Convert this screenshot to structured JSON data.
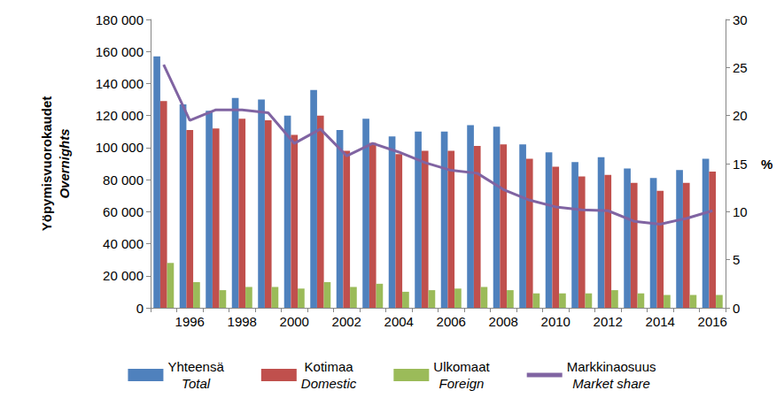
{
  "chart_data": {
    "type": "bar",
    "categories": [
      null,
      "1996",
      null,
      "1998",
      null,
      "2000",
      null,
      "2002",
      null,
      "2004",
      null,
      "2006",
      null,
      "2008",
      null,
      "2010",
      null,
      "2012",
      null,
      "2014",
      null,
      "2016"
    ],
    "ylabel": "Yöpymisvuorokaudet\nOvernights",
    "y2label": "%",
    "series": [
      {
        "name": "Yhteensä\nTotal",
        "color": "#4f81bd",
        "type": "bar",
        "values": [
          157000,
          127000,
          123000,
          131000,
          130000,
          120000,
          136000,
          111000,
          118000,
          107000,
          110000,
          110000,
          114000,
          113000,
          102000,
          97000,
          91000,
          94000,
          87000,
          81000,
          86000,
          93000
        ]
      },
      {
        "name": "Kotimaa\nDomestic",
        "color": "#c0504d",
        "type": "bar",
        "values": [
          129000,
          111000,
          112000,
          118000,
          117000,
          108000,
          120000,
          98000,
          103000,
          96000,
          98000,
          98000,
          101000,
          102000,
          93000,
          88000,
          82000,
          83000,
          78000,
          73000,
          78000,
          85000
        ]
      },
      {
        "name": "Ulkomaat\nForeign",
        "color": "#9bbb59",
        "type": "bar",
        "values": [
          28000,
          16000,
          11000,
          13000,
          13000,
          12000,
          16000,
          13000,
          15000,
          10000,
          11000,
          12000,
          13000,
          11000,
          9000,
          9000,
          9000,
          11000,
          9000,
          8000,
          8000,
          8000
        ]
      },
      {
        "name": "Markkinaosuus\nMarket share",
        "color": "#8064a2",
        "type": "line",
        "axis": "y2",
        "values": [
          25.3,
          19.5,
          20.6,
          20.6,
          20.3,
          17.1,
          18.6,
          15.8,
          17.1,
          16.2,
          15.1,
          14.3,
          14.0,
          12.3,
          11.2,
          10.5,
          10.2,
          10.1,
          9.0,
          8.7,
          9.3,
          10.1
        ]
      }
    ],
    "ylim": [
      0,
      180000
    ],
    "yticks": [
      {
        "value": 0,
        "label": "0"
      },
      {
        "value": 20000,
        "label": "20 000"
      },
      {
        "value": 40000,
        "label": "40 000"
      },
      {
        "value": 60000,
        "label": "60 000"
      },
      {
        "value": 80000,
        "label": "80 000"
      },
      {
        "value": 100000,
        "label": "100 000"
      },
      {
        "value": 120000,
        "label": "120 000"
      },
      {
        "value": 140000,
        "label": "140 000"
      },
      {
        "value": 160000,
        "label": "160 000"
      },
      {
        "value": 180000,
        "label": "180 000"
      }
    ],
    "y2lim": [
      0,
      30
    ],
    "y2ticks": [
      0,
      5,
      10,
      15,
      20,
      25,
      30
    ],
    "grid": false,
    "legend": "bottom",
    "data_labels": false
  }
}
